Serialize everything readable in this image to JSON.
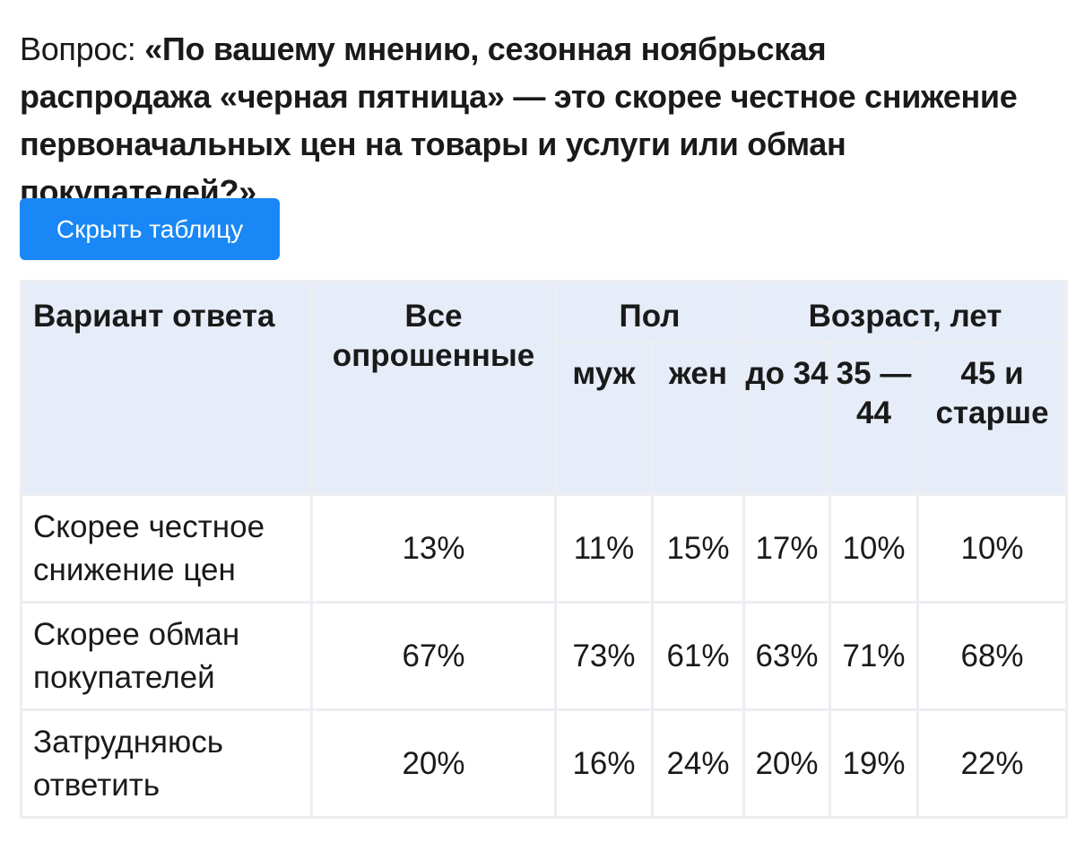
{
  "question": {
    "prefix": "Вопрос:",
    "text": "«По вашему мнению, сезонная ноябрьская распродажа «черная пятница» — это скорее честное снижение первоначальных цен на товары и услуги или обман покупателей?»"
  },
  "toggle_button": {
    "label": "Скрыть таблицу",
    "color": "#1987f5"
  },
  "table": {
    "header": {
      "answer": "Вариант ответа",
      "all": "Все опрошенные",
      "gender": "Пол",
      "age": "Возраст, лет",
      "male": "муж",
      "female": "жен",
      "age_34": "до 34",
      "age_35_44": "35 — 44",
      "age_45": "45 и старше"
    },
    "header_bg": "#e6ecf8",
    "rows": [
      {
        "label": "Скорее честное снижение цен",
        "values": [
          "13%",
          "11%",
          "15%",
          "17%",
          "10%",
          "10%"
        ]
      },
      {
        "label": "Скорее обман покупателей",
        "values": [
          "67%",
          "73%",
          "61%",
          "63%",
          "71%",
          "68%"
        ]
      },
      {
        "label": "Затрудняюсь ответить",
        "values": [
          "20%",
          "16%",
          "24%",
          "20%",
          "19%",
          "22%"
        ]
      }
    ]
  }
}
